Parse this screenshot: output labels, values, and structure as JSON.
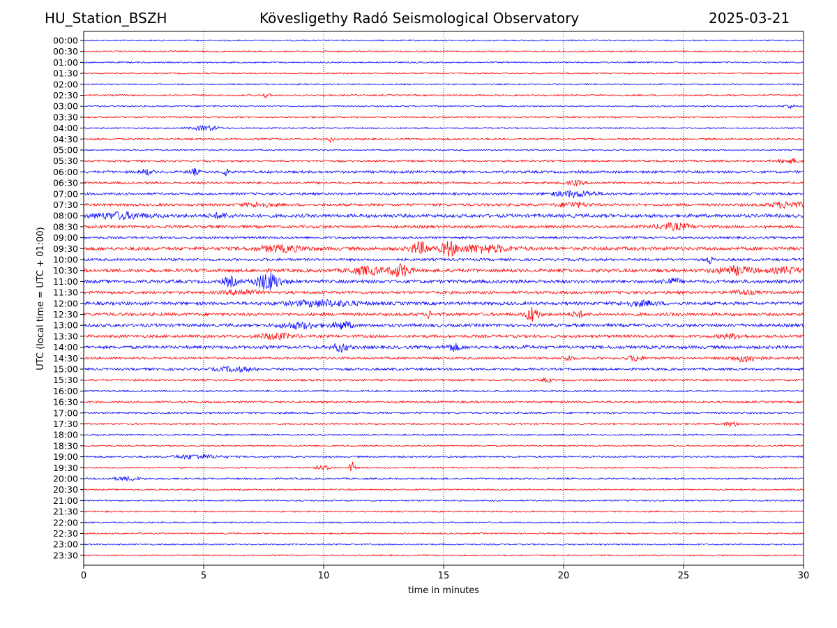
{
  "header": {
    "station": "HU_Station_BSZH",
    "observatory": "Kövesligethy Radó Seismological Observatory",
    "date": "2025-03-21"
  },
  "chart_data": {
    "type": "line",
    "title": "Kövesligethy Radó Seismological Observatory",
    "xlabel": "time in minutes",
    "ylabel": "UTC (local time = UTC + 01:00)",
    "xlim": [
      0,
      30
    ],
    "x_ticks": [
      "0",
      "5",
      "10",
      "15",
      "20",
      "25",
      "30"
    ],
    "x_tick_values": [
      0,
      5,
      10,
      15,
      20,
      25,
      30
    ],
    "grid": "vertical dotted lines at x ticks",
    "colors": {
      "blue": "#0000ff",
      "red": "#ff0000",
      "axis": "#000000"
    },
    "rows": [
      {
        "label": "00:00",
        "color": "#0000ff",
        "amp": 1.0,
        "events": []
      },
      {
        "label": "00:30",
        "color": "#ff0000",
        "amp": 1.0,
        "events": []
      },
      {
        "label": "01:00",
        "color": "#0000ff",
        "amp": 1.0,
        "events": []
      },
      {
        "label": "01:30",
        "color": "#ff0000",
        "amp": 0.9,
        "events": []
      },
      {
        "label": "02:00",
        "color": "#0000ff",
        "amp": 1.0,
        "events": []
      },
      {
        "label": "02:30",
        "color": "#ff0000",
        "amp": 1.1,
        "events": [
          {
            "t": 7.6,
            "a": 2.5,
            "w": 0.2
          }
        ]
      },
      {
        "label": "03:00",
        "color": "#0000ff",
        "amp": 1.0,
        "events": [
          {
            "t": 29.4,
            "a": 2.5,
            "w": 0.2
          }
        ]
      },
      {
        "label": "03:30",
        "color": "#ff0000",
        "amp": 1.0,
        "events": []
      },
      {
        "label": "04:00",
        "color": "#0000ff",
        "amp": 1.0,
        "events": [
          {
            "t": 5.1,
            "a": 3.5,
            "w": 0.5
          }
        ]
      },
      {
        "label": "04:30",
        "color": "#ff0000",
        "amp": 1.3,
        "events": [
          {
            "t": 10.3,
            "a": 4,
            "w": 0.1
          }
        ]
      },
      {
        "label": "05:00",
        "color": "#0000ff",
        "amp": 1.0,
        "events": []
      },
      {
        "label": "05:30",
        "color": "#ff0000",
        "amp": 1.4,
        "events": [
          {
            "t": 29.5,
            "a": 3,
            "w": 0.5
          }
        ]
      },
      {
        "label": "06:00",
        "color": "#0000ff",
        "amp": 1.8,
        "events": [
          {
            "t": 2.6,
            "a": 4,
            "w": 0.2
          },
          {
            "t": 4.6,
            "a": 4,
            "w": 0.2
          },
          {
            "t": 5.9,
            "a": 6,
            "w": 0.1
          }
        ]
      },
      {
        "label": "06:30",
        "color": "#ff0000",
        "amp": 1.6,
        "events": [
          {
            "t": 20.5,
            "a": 3,
            "w": 0.3
          }
        ]
      },
      {
        "label": "07:00",
        "color": "#0000ff",
        "amp": 1.6,
        "events": [
          {
            "t": 20.5,
            "a": 4,
            "w": 0.9
          }
        ]
      },
      {
        "label": "07:30",
        "color": "#ff0000",
        "amp": 1.8,
        "events": [
          {
            "t": 7.3,
            "a": 3,
            "w": 0.6
          },
          {
            "t": 20.4,
            "a": 3,
            "w": 0.6
          },
          {
            "t": 29.3,
            "a": 4,
            "w": 0.7
          }
        ]
      },
      {
        "label": "08:00",
        "color": "#0000ff",
        "amp": 2.4,
        "events": [
          {
            "t": 1.5,
            "a": 4,
            "w": 1.2
          },
          {
            "t": 5.7,
            "a": 3,
            "w": 0.4
          }
        ]
      },
      {
        "label": "08:30",
        "color": "#ff0000",
        "amp": 2.0,
        "events": [
          {
            "t": 24.6,
            "a": 4,
            "w": 0.8
          }
        ]
      },
      {
        "label": "09:00",
        "color": "#0000ff",
        "amp": 1.6,
        "events": []
      },
      {
        "label": "09:30",
        "color": "#ff0000",
        "amp": 2.4,
        "events": [
          {
            "t": 8.2,
            "a": 4,
            "w": 1.0
          },
          {
            "t": 14.0,
            "a": 8,
            "w": 0.4
          },
          {
            "t": 15.2,
            "a": 9,
            "w": 0.3
          },
          {
            "t": 16.6,
            "a": 5,
            "w": 1.2
          }
        ]
      },
      {
        "label": "10:00",
        "color": "#0000ff",
        "amp": 1.8,
        "events": [
          {
            "t": 26.1,
            "a": 7,
            "w": 0.08
          }
        ]
      },
      {
        "label": "10:30",
        "color": "#ff0000",
        "amp": 2.4,
        "events": [
          {
            "t": 11.8,
            "a": 5,
            "w": 0.7
          },
          {
            "t": 13.2,
            "a": 9,
            "w": 0.4
          },
          {
            "t": 27.2,
            "a": 5,
            "w": 0.8
          },
          {
            "t": 29.3,
            "a": 4,
            "w": 0.6
          }
        ]
      },
      {
        "label": "11:00",
        "color": "#0000ff",
        "amp": 2.4,
        "events": [
          {
            "t": 6.1,
            "a": 6,
            "w": 0.3
          },
          {
            "t": 7.7,
            "a": 12,
            "w": 0.5
          },
          {
            "t": 24.5,
            "a": 4,
            "w": 0.4
          }
        ]
      },
      {
        "label": "11:30",
        "color": "#ff0000",
        "amp": 2.0,
        "events": [
          {
            "t": 6.6,
            "a": 4,
            "w": 0.6
          },
          {
            "t": 27.5,
            "a": 3,
            "w": 0.5
          }
        ]
      },
      {
        "label": "12:00",
        "color": "#0000ff",
        "amp": 2.2,
        "events": [
          {
            "t": 10.0,
            "a": 4,
            "w": 1.5
          },
          {
            "t": 23.2,
            "a": 3,
            "w": 0.8
          }
        ]
      },
      {
        "label": "12:30",
        "color": "#ff0000",
        "amp": 2.2,
        "events": [
          {
            "t": 14.4,
            "a": 5,
            "w": 0.1
          },
          {
            "t": 18.7,
            "a": 11,
            "w": 0.25
          },
          {
            "t": 20.6,
            "a": 5,
            "w": 0.2
          }
        ]
      },
      {
        "label": "13:00",
        "color": "#0000ff",
        "amp": 2.2,
        "events": [
          {
            "t": 9.0,
            "a": 4,
            "w": 0.8
          },
          {
            "t": 10.8,
            "a": 5,
            "w": 0.4
          }
        ]
      },
      {
        "label": "13:30",
        "color": "#ff0000",
        "amp": 2.0,
        "events": [
          {
            "t": 8.0,
            "a": 4,
            "w": 0.7
          },
          {
            "t": 27.0,
            "a": 3,
            "w": 0.5
          }
        ]
      },
      {
        "label": "14:00",
        "color": "#0000ff",
        "amp": 2.2,
        "events": [
          {
            "t": 10.7,
            "a": 6,
            "w": 0.3
          },
          {
            "t": 15.4,
            "a": 5,
            "w": 0.3
          },
          {
            "t": 18.4,
            "a": 6,
            "w": 0.06
          }
        ]
      },
      {
        "label": "14:30",
        "color": "#ff0000",
        "amp": 1.6,
        "events": [
          {
            "t": 20.2,
            "a": 4,
            "w": 0.2
          },
          {
            "t": 23.0,
            "a": 4,
            "w": 0.3
          },
          {
            "t": 27.6,
            "a": 5,
            "w": 0.6
          }
        ]
      },
      {
        "label": "15:00",
        "color": "#0000ff",
        "amp": 1.7,
        "events": [
          {
            "t": 6.3,
            "a": 3,
            "w": 0.8
          }
        ]
      },
      {
        "label": "15:30",
        "color": "#ff0000",
        "amp": 1.4,
        "events": [
          {
            "t": 19.3,
            "a": 3,
            "w": 0.2
          }
        ]
      },
      {
        "label": "16:00",
        "color": "#0000ff",
        "amp": 1.2,
        "events": []
      },
      {
        "label": "16:30",
        "color": "#ff0000",
        "amp": 1.4,
        "events": []
      },
      {
        "label": "17:00",
        "color": "#0000ff",
        "amp": 1.2,
        "events": []
      },
      {
        "label": "17:30",
        "color": "#ff0000",
        "amp": 1.2,
        "events": [
          {
            "t": 27.0,
            "a": 3,
            "w": 0.3
          }
        ]
      },
      {
        "label": "18:00",
        "color": "#0000ff",
        "amp": 1.0,
        "events": []
      },
      {
        "label": "18:30",
        "color": "#ff0000",
        "amp": 1.0,
        "events": []
      },
      {
        "label": "19:00",
        "color": "#0000ff",
        "amp": 1.2,
        "events": [
          {
            "t": 4.7,
            "a": 3,
            "w": 0.9
          }
        ]
      },
      {
        "label": "19:30",
        "color": "#ff0000",
        "amp": 1.0,
        "events": [
          {
            "t": 10.0,
            "a": 3,
            "w": 0.3
          },
          {
            "t": 11.2,
            "a": 8,
            "w": 0.12
          }
        ]
      },
      {
        "label": "20:00",
        "color": "#0000ff",
        "amp": 1.2,
        "events": [
          {
            "t": 1.8,
            "a": 2.5,
            "w": 0.6
          }
        ]
      },
      {
        "label": "20:30",
        "color": "#ff0000",
        "amp": 1.0,
        "events": []
      },
      {
        "label": "21:00",
        "color": "#0000ff",
        "amp": 1.0,
        "events": []
      },
      {
        "label": "21:30",
        "color": "#ff0000",
        "amp": 1.0,
        "events": []
      },
      {
        "label": "22:00",
        "color": "#0000ff",
        "amp": 1.0,
        "events": []
      },
      {
        "label": "22:30",
        "color": "#ff0000",
        "amp": 1.0,
        "events": []
      },
      {
        "label": "23:00",
        "color": "#0000ff",
        "amp": 1.0,
        "events": []
      },
      {
        "label": "23:30",
        "color": "#ff0000",
        "amp": 1.0,
        "events": []
      }
    ]
  }
}
